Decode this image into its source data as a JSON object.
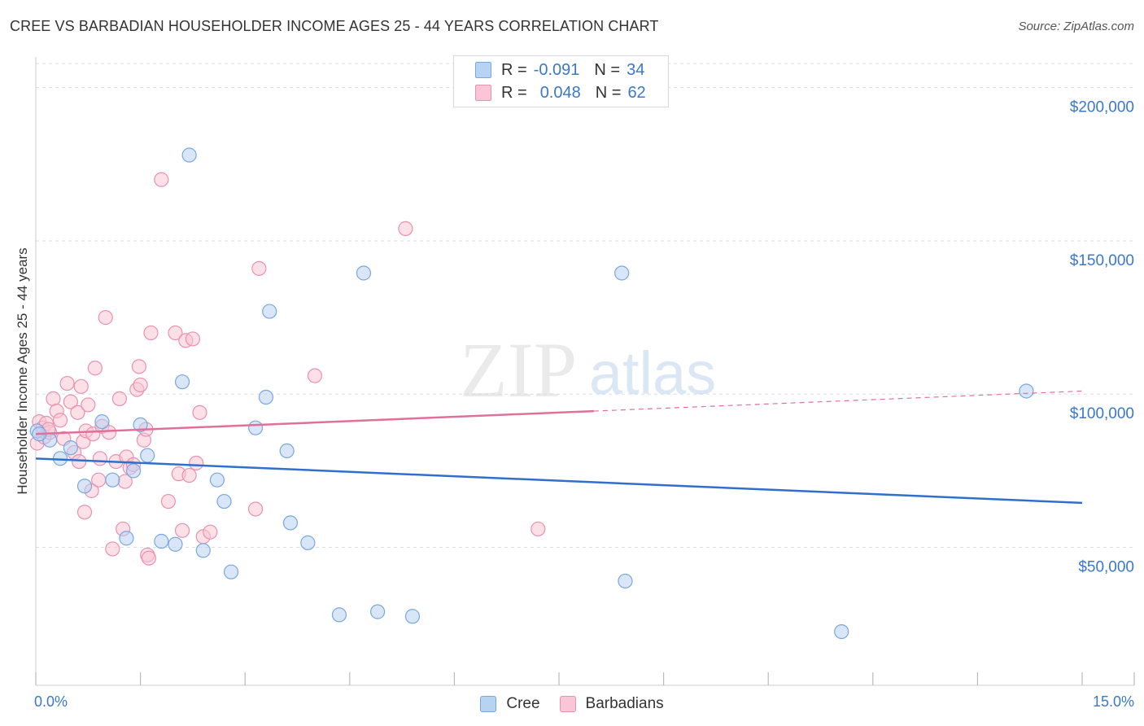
{
  "title": "CREE VS BARBADIAN HOUSEHOLDER INCOME AGES 25 - 44 YEARS CORRELATION CHART",
  "source": "Source: ZipAtlas.com",
  "watermark": {
    "zip": "ZIP",
    "atlas": "atlas"
  },
  "legend": {
    "r_label": "R =",
    "n_label": "N =",
    "rows": [
      {
        "r": "-0.091",
        "n": "34"
      },
      {
        "r": "0.048",
        "n": "62"
      }
    ]
  },
  "bottom_legend": [
    "Cree",
    "Barbadians"
  ],
  "colors": {
    "cree_fill": "#b8d2f2",
    "cree_stroke": "#7aa7de",
    "cree_line": "#3070cc",
    "barb_fill": "#f8c6d6",
    "barb_stroke": "#ea91af",
    "barb_line": "#e0709a",
    "axis_label": "#3a78c8"
  },
  "chart_data": {
    "type": "scatter",
    "ylabel": "Householder Income Ages 25 - 44 years",
    "x_tick_labels": [
      "0.0%",
      "15.0%"
    ],
    "y_tick_labels": [
      "$50,000",
      "$100,000",
      "$150,000",
      "$200,000"
    ],
    "y_ticks": [
      50000,
      100000,
      150000,
      200000
    ],
    "xlim": [
      0,
      15
    ],
    "ylim": [
      5000,
      210000
    ],
    "grid": true,
    "series": [
      {
        "name": "Cree",
        "r": -0.091,
        "n": 34,
        "trend": {
          "x": [
            0,
            15
          ],
          "y": [
            79000,
            64500
          ],
          "dashed_from": null
        },
        "points": [
          [
            0.02,
            88000
          ],
          [
            0.2,
            85000
          ],
          [
            0.35,
            79000
          ],
          [
            0.5,
            82500
          ],
          [
            0.7,
            70000
          ],
          [
            0.95,
            91000
          ],
          [
            1.1,
            72000
          ],
          [
            1.3,
            53000
          ],
          [
            1.4,
            75000
          ],
          [
            1.5,
            90000
          ],
          [
            1.6,
            80000
          ],
          [
            1.8,
            52000
          ],
          [
            2.0,
            51000
          ],
          [
            2.1,
            104000
          ],
          [
            2.2,
            178000
          ],
          [
            2.4,
            49000
          ],
          [
            2.6,
            72000
          ],
          [
            2.7,
            65000
          ],
          [
            2.8,
            42000
          ],
          [
            3.15,
            89000
          ],
          [
            3.3,
            99000
          ],
          [
            3.35,
            127000
          ],
          [
            3.6,
            81500
          ],
          [
            3.65,
            58000
          ],
          [
            3.9,
            51500
          ],
          [
            4.35,
            28000
          ],
          [
            4.7,
            139500
          ],
          [
            4.9,
            29000
          ],
          [
            5.4,
            27500
          ],
          [
            8.4,
            139500
          ],
          [
            8.45,
            39000
          ],
          [
            11.55,
            22500
          ],
          [
            14.2,
            101000
          ],
          [
            0.05,
            87000
          ]
        ]
      },
      {
        "name": "Barbadians",
        "r": 0.048,
        "n": 62,
        "trend": {
          "x": [
            0,
            15
          ],
          "y": [
            87000,
            101000
          ],
          "dashed_from": 8.0
        },
        "points": [
          [
            0.02,
            84000
          ],
          [
            0.05,
            91000
          ],
          [
            0.1,
            89000
          ],
          [
            0.12,
            86000
          ],
          [
            0.15,
            90500
          ],
          [
            0.2,
            87500
          ],
          [
            0.25,
            98500
          ],
          [
            0.3,
            94500
          ],
          [
            0.35,
            91500
          ],
          [
            0.4,
            85500
          ],
          [
            0.45,
            103500
          ],
          [
            0.5,
            97500
          ],
          [
            0.55,
            81000
          ],
          [
            0.6,
            94000
          ],
          [
            0.62,
            78000
          ],
          [
            0.65,
            102500
          ],
          [
            0.68,
            84500
          ],
          [
            0.7,
            61500
          ],
          [
            0.72,
            88000
          ],
          [
            0.75,
            96500
          ],
          [
            0.8,
            68500
          ],
          [
            0.82,
            87000
          ],
          [
            0.85,
            108500
          ],
          [
            0.9,
            72000
          ],
          [
            0.92,
            79000
          ],
          [
            0.95,
            89500
          ],
          [
            1.0,
            125000
          ],
          [
            1.05,
            87500
          ],
          [
            1.1,
            49500
          ],
          [
            1.15,
            78000
          ],
          [
            1.2,
            98500
          ],
          [
            1.25,
            56000
          ],
          [
            1.28,
            71500
          ],
          [
            1.3,
            79500
          ],
          [
            1.35,
            76000
          ],
          [
            1.4,
            77000
          ],
          [
            1.45,
            101500
          ],
          [
            1.48,
            109000
          ],
          [
            1.5,
            103000
          ],
          [
            1.55,
            85000
          ],
          [
            1.58,
            88500
          ],
          [
            1.6,
            47500
          ],
          [
            1.65,
            120000
          ],
          [
            1.8,
            170000
          ],
          [
            1.9,
            65000
          ],
          [
            2.0,
            120000
          ],
          [
            2.05,
            74000
          ],
          [
            2.1,
            55500
          ],
          [
            2.15,
            117500
          ],
          [
            2.2,
            73500
          ],
          [
            2.25,
            118000
          ],
          [
            2.3,
            77500
          ],
          [
            2.35,
            94000
          ],
          [
            2.4,
            53500
          ],
          [
            2.5,
            55000
          ],
          [
            3.15,
            62500
          ],
          [
            3.2,
            141000
          ],
          [
            4.0,
            106000
          ],
          [
            5.3,
            154000
          ],
          [
            7.2,
            56000
          ],
          [
            1.62,
            46500
          ],
          [
            0.18,
            88500
          ]
        ]
      }
    ]
  }
}
